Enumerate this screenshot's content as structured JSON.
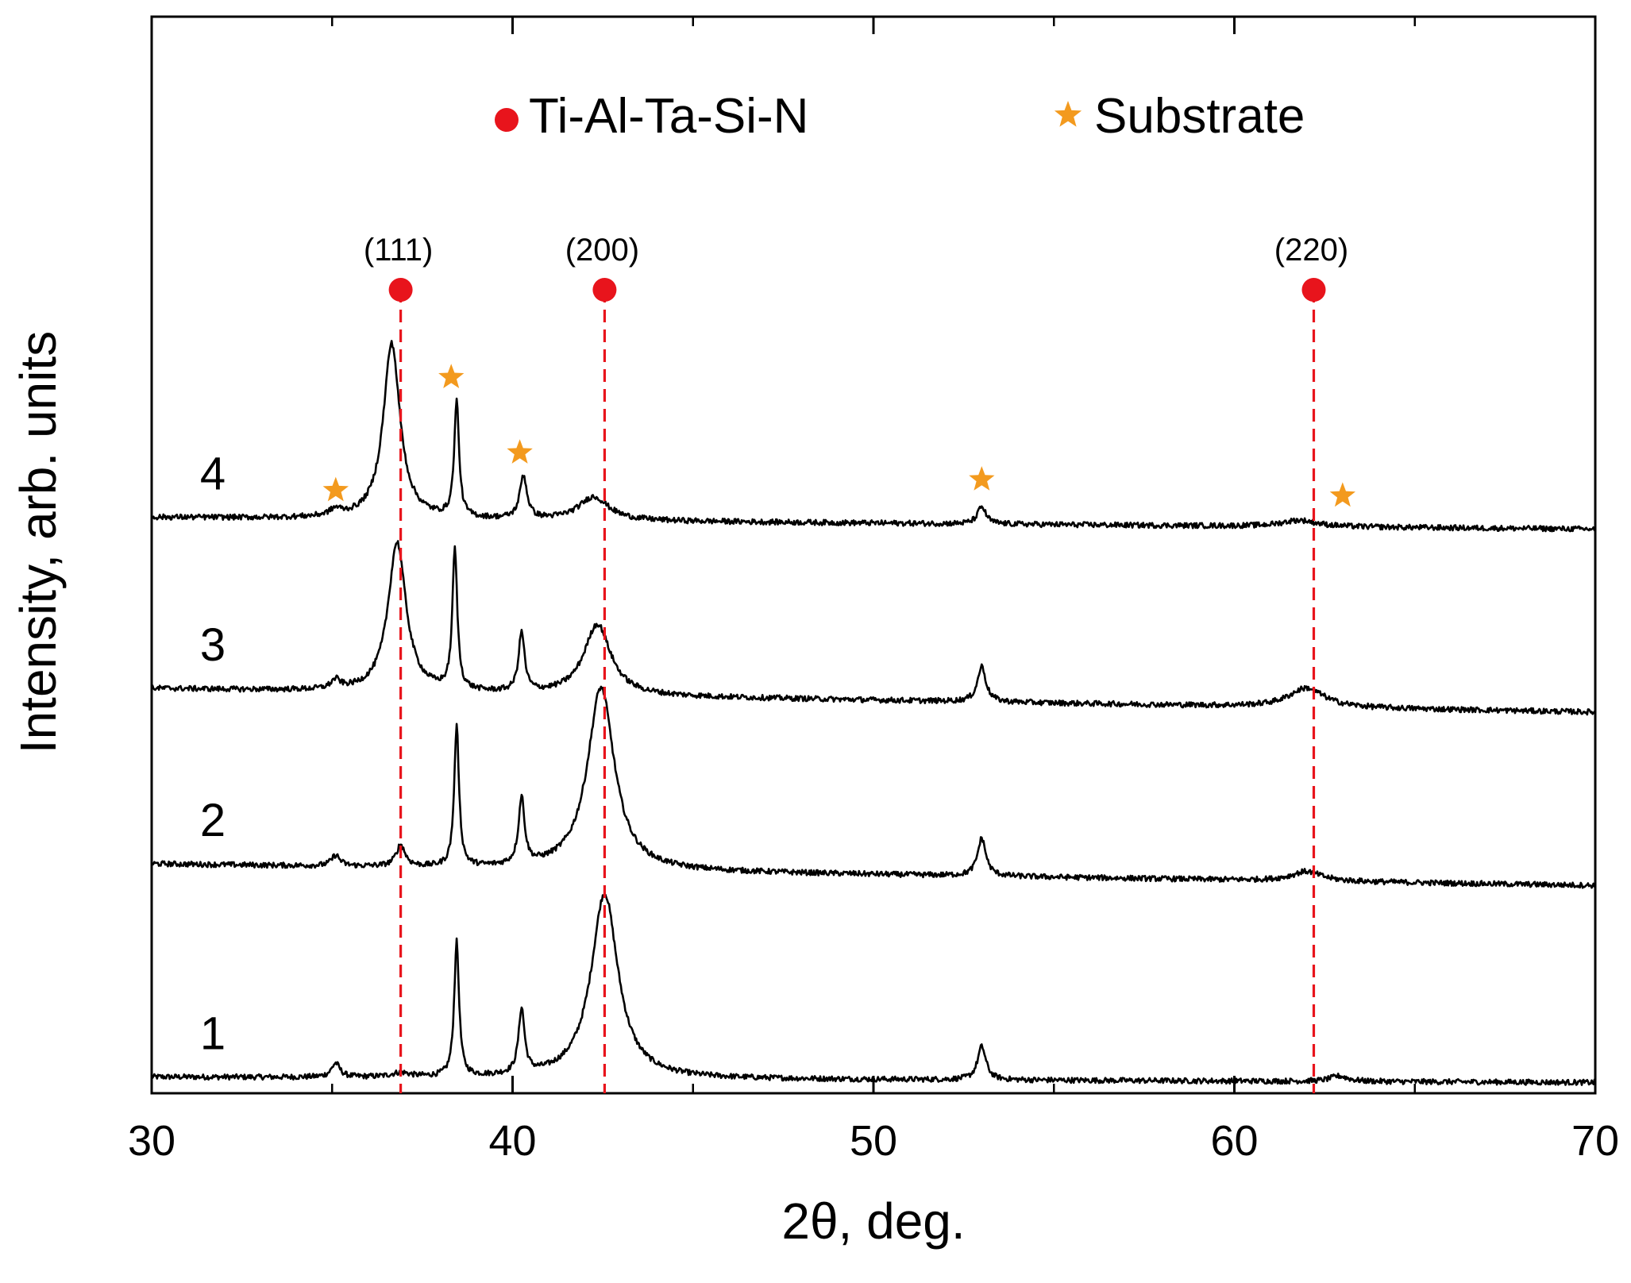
{
  "chart_data": {
    "type": "line",
    "title": "",
    "xlabel": "2θ, deg.",
    "ylabel": "Intensity, arb. units",
    "xlim": [
      30,
      70
    ],
    "ylim": [
      0,
      100
    ],
    "x_ticks": [
      30,
      40,
      50,
      60,
      70
    ],
    "x_minor_ticks": [
      35,
      45,
      55,
      65
    ],
    "grid": false,
    "legend": {
      "position": "top-center",
      "entries": [
        {
          "label": "Ti-Al-Ta-Si-N",
          "marker": "circle",
          "color": "#e8141c"
        },
        {
          "label": "Substrate",
          "marker": "star",
          "color": "#f39a1e"
        }
      ]
    },
    "series": [
      {
        "name": "1",
        "baseline": 1.5,
        "slope": -0.5,
        "peaks": [
          {
            "x": 35.1,
            "h": 1.3,
            "w": 0.14
          },
          {
            "x": 36.9,
            "h": 0.4,
            "w": 0.3
          },
          {
            "x": 38.45,
            "h": 12.5,
            "w": 0.08
          },
          {
            "x": 40.25,
            "h": 6.0,
            "w": 0.1
          },
          {
            "x": 42.55,
            "h": 17.2,
            "w": 0.45
          },
          {
            "x": 53.0,
            "h": 3.1,
            "w": 0.14
          },
          {
            "x": 62.9,
            "h": 0.5,
            "w": 0.3
          }
        ]
      },
      {
        "name": "2",
        "baseline": 21.3,
        "slope": -2.0,
        "peaks": [
          {
            "x": 35.1,
            "h": 1.0,
            "w": 0.14
          },
          {
            "x": 36.9,
            "h": 2.0,
            "w": 0.15
          },
          {
            "x": 38.45,
            "h": 13.0,
            "w": 0.08
          },
          {
            "x": 40.25,
            "h": 6.2,
            "w": 0.1
          },
          {
            "x": 42.45,
            "h": 17.0,
            "w": 0.45
          },
          {
            "x": 53.0,
            "h": 3.5,
            "w": 0.14
          },
          {
            "x": 62.0,
            "h": 0.9,
            "w": 0.5
          }
        ]
      },
      {
        "name": "3",
        "baseline": 37.6,
        "slope": -2.2,
        "peaks": [
          {
            "x": 35.1,
            "h": 0.8,
            "w": 0.15
          },
          {
            "x": 36.8,
            "h": 13.9,
            "w": 0.3
          },
          {
            "x": 38.4,
            "h": 13.0,
            "w": 0.08
          },
          {
            "x": 40.25,
            "h": 5.5,
            "w": 0.1
          },
          {
            "x": 42.35,
            "h": 6.6,
            "w": 0.45
          },
          {
            "x": 53.0,
            "h": 3.3,
            "w": 0.14
          },
          {
            "x": 62.0,
            "h": 1.8,
            "w": 0.6
          }
        ]
      },
      {
        "name": "4",
        "baseline": 53.5,
        "slope": -1.1,
        "peaks": [
          {
            "x": 35.1,
            "h": 0.6,
            "w": 0.2
          },
          {
            "x": 36.65,
            "h": 16.3,
            "w": 0.28
          },
          {
            "x": 38.45,
            "h": 10.7,
            "w": 0.08
          },
          {
            "x": 40.3,
            "h": 4.0,
            "w": 0.12
          },
          {
            "x": 42.25,
            "h": 2.2,
            "w": 0.5
          },
          {
            "x": 53.0,
            "h": 1.6,
            "w": 0.14
          },
          {
            "x": 61.8,
            "h": 0.6,
            "w": 0.6
          }
        ]
      }
    ],
    "phase_lines": [
      {
        "plane": "(111)",
        "x": 36.9
      },
      {
        "plane": "(200)",
        "x": 42.55
      },
      {
        "plane": "(220)",
        "x": 62.2
      }
    ],
    "substrate_markers": [
      {
        "x": 35.1,
        "y": 56.0
      },
      {
        "x": 38.3,
        "y": 66.5
      },
      {
        "x": 40.2,
        "y": 59.5
      },
      {
        "x": 53.0,
        "y": 57.0
      },
      {
        "x": 63.0,
        "y": 55.5
      }
    ]
  }
}
